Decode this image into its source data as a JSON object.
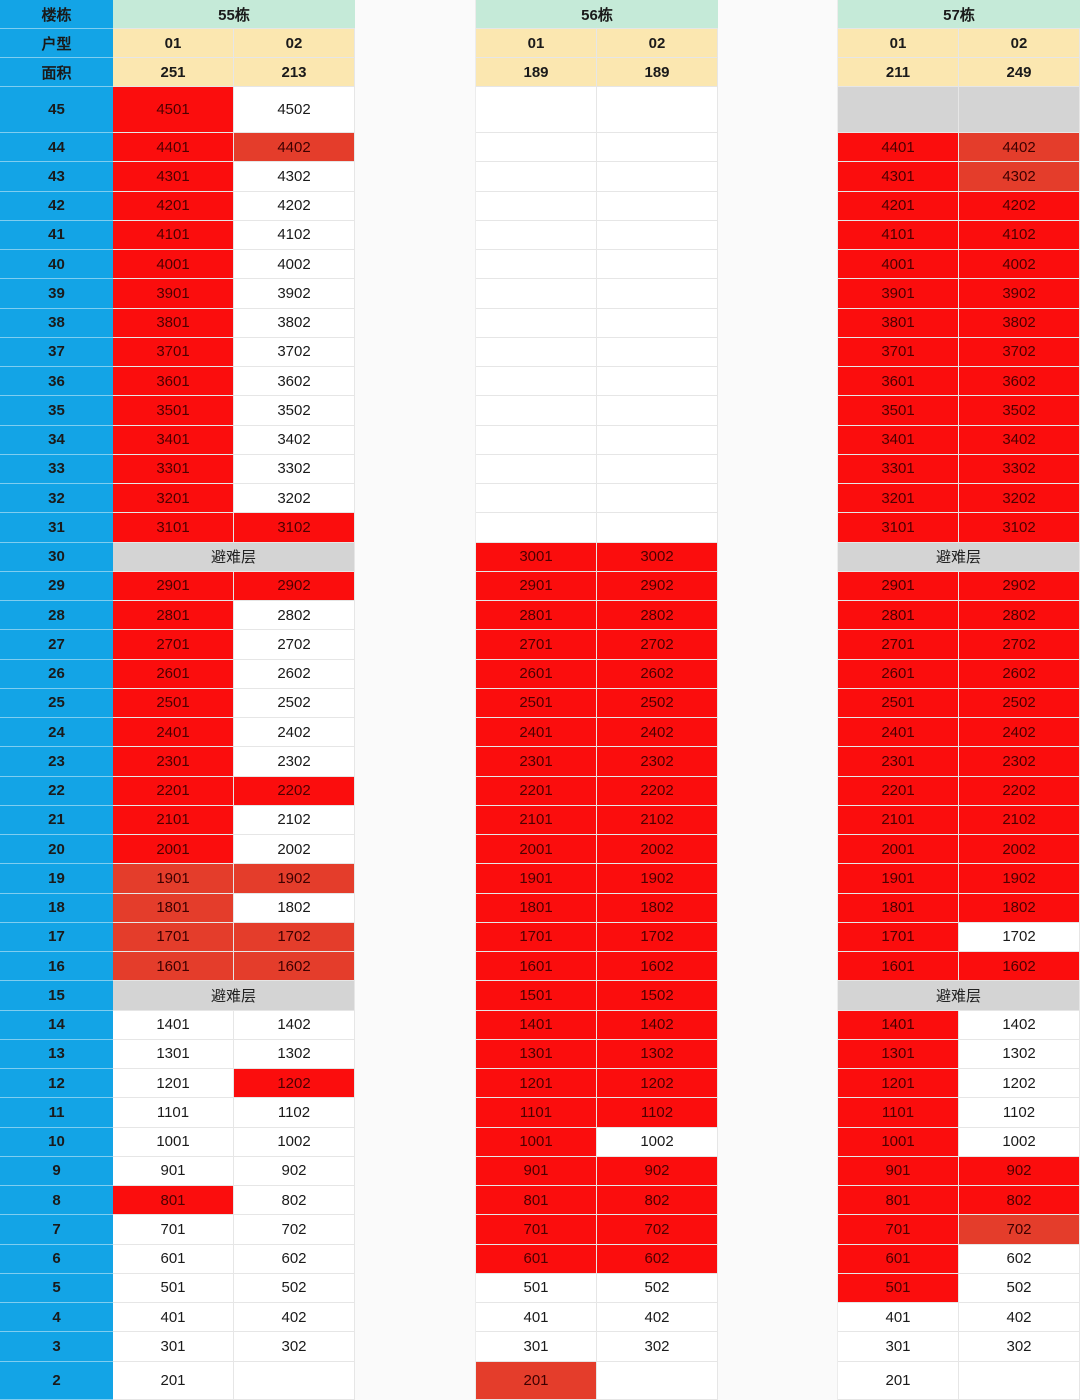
{
  "header": {
    "building_label": "楼栋",
    "unit_type_label": "户型",
    "area_label": "面积",
    "buildings": [
      {
        "name": "55栋",
        "units": [
          "01",
          "02"
        ],
        "areas": [
          "251",
          "213"
        ]
      },
      {
        "name": "56栋",
        "units": [
          "01",
          "02"
        ],
        "areas": [
          "189",
          "189"
        ]
      },
      {
        "name": "57栋",
        "units": [
          "01",
          "02"
        ],
        "areas": [
          "211",
          "249"
        ]
      }
    ]
  },
  "refuge_label": "避难层",
  "status_legend": {
    "w": {
      "meaning": "available",
      "color": "#ffffff"
    },
    "r": {
      "meaning": "sold",
      "color": "#fb0d0d"
    },
    "d": {
      "meaning": "sold-dark",
      "color": "#e43d2b"
    },
    "g": {
      "meaning": "unavailable",
      "color": "#d4d4d4"
    }
  },
  "rows": [
    {
      "floor": "45",
      "b55": [
        [
          "4501",
          "r"
        ],
        [
          "4502",
          "w"
        ]
      ],
      "b56": [
        [
          "",
          "w"
        ],
        [
          "",
          "w"
        ]
      ],
      "b57": [
        [
          "",
          "g"
        ],
        [
          "",
          "g"
        ]
      ]
    },
    {
      "floor": "44",
      "b55": [
        [
          "4401",
          "r"
        ],
        [
          "4402",
          "d"
        ]
      ],
      "b56": [
        [
          "",
          "w"
        ],
        [
          "",
          "w"
        ]
      ],
      "b57": [
        [
          "4401",
          "r"
        ],
        [
          "4402",
          "d"
        ]
      ]
    },
    {
      "floor": "43",
      "b55": [
        [
          "4301",
          "r"
        ],
        [
          "4302",
          "w"
        ]
      ],
      "b56": [
        [
          "",
          "w"
        ],
        [
          "",
          "w"
        ]
      ],
      "b57": [
        [
          "4301",
          "r"
        ],
        [
          "4302",
          "d"
        ]
      ]
    },
    {
      "floor": "42",
      "b55": [
        [
          "4201",
          "r"
        ],
        [
          "4202",
          "w"
        ]
      ],
      "b56": [
        [
          "",
          "w"
        ],
        [
          "",
          "w"
        ]
      ],
      "b57": [
        [
          "4201",
          "r"
        ],
        [
          "4202",
          "r"
        ]
      ]
    },
    {
      "floor": "41",
      "b55": [
        [
          "4101",
          "r"
        ],
        [
          "4102",
          "w"
        ]
      ],
      "b56": [
        [
          "",
          "w"
        ],
        [
          "",
          "w"
        ]
      ],
      "b57": [
        [
          "4101",
          "r"
        ],
        [
          "4102",
          "r"
        ]
      ]
    },
    {
      "floor": "40",
      "b55": [
        [
          "4001",
          "r"
        ],
        [
          "4002",
          "w"
        ]
      ],
      "b56": [
        [
          "",
          "w"
        ],
        [
          "",
          "w"
        ]
      ],
      "b57": [
        [
          "4001",
          "r"
        ],
        [
          "4002",
          "r"
        ]
      ]
    },
    {
      "floor": "39",
      "b55": [
        [
          "3901",
          "r"
        ],
        [
          "3902",
          "w"
        ]
      ],
      "b56": [
        [
          "",
          "w"
        ],
        [
          "",
          "w"
        ]
      ],
      "b57": [
        [
          "3901",
          "r"
        ],
        [
          "3902",
          "r"
        ]
      ]
    },
    {
      "floor": "38",
      "b55": [
        [
          "3801",
          "r"
        ],
        [
          "3802",
          "w"
        ]
      ],
      "b56": [
        [
          "",
          "w"
        ],
        [
          "",
          "w"
        ]
      ],
      "b57": [
        [
          "3801",
          "r"
        ],
        [
          "3802",
          "r"
        ]
      ]
    },
    {
      "floor": "37",
      "b55": [
        [
          "3701",
          "r"
        ],
        [
          "3702",
          "w"
        ]
      ],
      "b56": [
        [
          "",
          "w"
        ],
        [
          "",
          "w"
        ]
      ],
      "b57": [
        [
          "3701",
          "r"
        ],
        [
          "3702",
          "r"
        ]
      ]
    },
    {
      "floor": "36",
      "b55": [
        [
          "3601",
          "r"
        ],
        [
          "3602",
          "w"
        ]
      ],
      "b56": [
        [
          "",
          "w"
        ],
        [
          "",
          "w"
        ]
      ],
      "b57": [
        [
          "3601",
          "r"
        ],
        [
          "3602",
          "r"
        ]
      ]
    },
    {
      "floor": "35",
      "b55": [
        [
          "3501",
          "r"
        ],
        [
          "3502",
          "w"
        ]
      ],
      "b56": [
        [
          "",
          "w"
        ],
        [
          "",
          "w"
        ]
      ],
      "b57": [
        [
          "3501",
          "r"
        ],
        [
          "3502",
          "r"
        ]
      ]
    },
    {
      "floor": "34",
      "b55": [
        [
          "3401",
          "r"
        ],
        [
          "3402",
          "w"
        ]
      ],
      "b56": [
        [
          "",
          "w"
        ],
        [
          "",
          "w"
        ]
      ],
      "b57": [
        [
          "3401",
          "r"
        ],
        [
          "3402",
          "r"
        ]
      ]
    },
    {
      "floor": "33",
      "b55": [
        [
          "3301",
          "r"
        ],
        [
          "3302",
          "w"
        ]
      ],
      "b56": [
        [
          "",
          "w"
        ],
        [
          "",
          "w"
        ]
      ],
      "b57": [
        [
          "3301",
          "r"
        ],
        [
          "3302",
          "r"
        ]
      ]
    },
    {
      "floor": "32",
      "b55": [
        [
          "3201",
          "r"
        ],
        [
          "3202",
          "w"
        ]
      ],
      "b56": [
        [
          "",
          "w"
        ],
        [
          "",
          "w"
        ]
      ],
      "b57": [
        [
          "3201",
          "r"
        ],
        [
          "3202",
          "r"
        ]
      ]
    },
    {
      "floor": "31",
      "b55": [
        [
          "3101",
          "r"
        ],
        [
          "3102",
          "r"
        ]
      ],
      "b56": [
        [
          "",
          "w"
        ],
        [
          "",
          "w"
        ]
      ],
      "b57": [
        [
          "3101",
          "r"
        ],
        [
          "3102",
          "r"
        ]
      ]
    },
    {
      "floor": "30",
      "b55": "refuge",
      "b56": [
        [
          "3001",
          "r"
        ],
        [
          "3002",
          "r"
        ]
      ],
      "b57": "refuge"
    },
    {
      "floor": "29",
      "b55": [
        [
          "2901",
          "r"
        ],
        [
          "2902",
          "r"
        ]
      ],
      "b56": [
        [
          "2901",
          "r"
        ],
        [
          "2902",
          "r"
        ]
      ],
      "b57": [
        [
          "2901",
          "r"
        ],
        [
          "2902",
          "r"
        ]
      ]
    },
    {
      "floor": "28",
      "b55": [
        [
          "2801",
          "r"
        ],
        [
          "2802",
          "w"
        ]
      ],
      "b56": [
        [
          "2801",
          "r"
        ],
        [
          "2802",
          "r"
        ]
      ],
      "b57": [
        [
          "2801",
          "r"
        ],
        [
          "2802",
          "r"
        ]
      ]
    },
    {
      "floor": "27",
      "b55": [
        [
          "2701",
          "r"
        ],
        [
          "2702",
          "w"
        ]
      ],
      "b56": [
        [
          "2701",
          "r"
        ],
        [
          "2702",
          "r"
        ]
      ],
      "b57": [
        [
          "2701",
          "r"
        ],
        [
          "2702",
          "r"
        ]
      ]
    },
    {
      "floor": "26",
      "b55": [
        [
          "2601",
          "r"
        ],
        [
          "2602",
          "w"
        ]
      ],
      "b56": [
        [
          "2601",
          "r"
        ],
        [
          "2602",
          "r"
        ]
      ],
      "b57": [
        [
          "2601",
          "r"
        ],
        [
          "2602",
          "r"
        ]
      ]
    },
    {
      "floor": "25",
      "b55": [
        [
          "2501",
          "r"
        ],
        [
          "2502",
          "w"
        ]
      ],
      "b56": [
        [
          "2501",
          "r"
        ],
        [
          "2502",
          "r"
        ]
      ],
      "b57": [
        [
          "2501",
          "r"
        ],
        [
          "2502",
          "r"
        ]
      ]
    },
    {
      "floor": "24",
      "b55": [
        [
          "2401",
          "r"
        ],
        [
          "2402",
          "w"
        ]
      ],
      "b56": [
        [
          "2401",
          "r"
        ],
        [
          "2402",
          "r"
        ]
      ],
      "b57": [
        [
          "2401",
          "r"
        ],
        [
          "2402",
          "r"
        ]
      ]
    },
    {
      "floor": "23",
      "b55": [
        [
          "2301",
          "r"
        ],
        [
          "2302",
          "w"
        ]
      ],
      "b56": [
        [
          "2301",
          "r"
        ],
        [
          "2302",
          "r"
        ]
      ],
      "b57": [
        [
          "2301",
          "r"
        ],
        [
          "2302",
          "r"
        ]
      ]
    },
    {
      "floor": "22",
      "b55": [
        [
          "2201",
          "r"
        ],
        [
          "2202",
          "r"
        ]
      ],
      "b56": [
        [
          "2201",
          "r"
        ],
        [
          "2202",
          "r"
        ]
      ],
      "b57": [
        [
          "2201",
          "r"
        ],
        [
          "2202",
          "r"
        ]
      ]
    },
    {
      "floor": "21",
      "b55": [
        [
          "2101",
          "r"
        ],
        [
          "2102",
          "w"
        ]
      ],
      "b56": [
        [
          "2101",
          "r"
        ],
        [
          "2102",
          "r"
        ]
      ],
      "b57": [
        [
          "2101",
          "r"
        ],
        [
          "2102",
          "r"
        ]
      ]
    },
    {
      "floor": "20",
      "b55": [
        [
          "2001",
          "r"
        ],
        [
          "2002",
          "w"
        ]
      ],
      "b56": [
        [
          "2001",
          "r"
        ],
        [
          "2002",
          "r"
        ]
      ],
      "b57": [
        [
          "2001",
          "r"
        ],
        [
          "2002",
          "r"
        ]
      ]
    },
    {
      "floor": "19",
      "b55": [
        [
          "1901",
          "d"
        ],
        [
          "1902",
          "d"
        ]
      ],
      "b56": [
        [
          "1901",
          "r"
        ],
        [
          "1902",
          "r"
        ]
      ],
      "b57": [
        [
          "1901",
          "r"
        ],
        [
          "1902",
          "r"
        ]
      ]
    },
    {
      "floor": "18",
      "b55": [
        [
          "1801",
          "d"
        ],
        [
          "1802",
          "w"
        ]
      ],
      "b56": [
        [
          "1801",
          "r"
        ],
        [
          "1802",
          "r"
        ]
      ],
      "b57": [
        [
          "1801",
          "r"
        ],
        [
          "1802",
          "r"
        ]
      ]
    },
    {
      "floor": "17",
      "b55": [
        [
          "1701",
          "d"
        ],
        [
          "1702",
          "d"
        ]
      ],
      "b56": [
        [
          "1701",
          "r"
        ],
        [
          "1702",
          "r"
        ]
      ],
      "b57": [
        [
          "1701",
          "r"
        ],
        [
          "1702",
          "w"
        ]
      ]
    },
    {
      "floor": "16",
      "b55": [
        [
          "1601",
          "d"
        ],
        [
          "1602",
          "d"
        ]
      ],
      "b56": [
        [
          "1601",
          "r"
        ],
        [
          "1602",
          "r"
        ]
      ],
      "b57": [
        [
          "1601",
          "r"
        ],
        [
          "1602",
          "r"
        ]
      ]
    },
    {
      "floor": "15",
      "b55": "refuge",
      "b56": [
        [
          "1501",
          "r"
        ],
        [
          "1502",
          "r"
        ]
      ],
      "b57": "refuge"
    },
    {
      "floor": "14",
      "b55": [
        [
          "1401",
          "w"
        ],
        [
          "1402",
          "w"
        ]
      ],
      "b56": [
        [
          "1401",
          "r"
        ],
        [
          "1402",
          "r"
        ]
      ],
      "b57": [
        [
          "1401",
          "r"
        ],
        [
          "1402",
          "w"
        ]
      ]
    },
    {
      "floor": "13",
      "b55": [
        [
          "1301",
          "w"
        ],
        [
          "1302",
          "w"
        ]
      ],
      "b56": [
        [
          "1301",
          "r"
        ],
        [
          "1302",
          "r"
        ]
      ],
      "b57": [
        [
          "1301",
          "r"
        ],
        [
          "1302",
          "w"
        ]
      ]
    },
    {
      "floor": "12",
      "b55": [
        [
          "1201",
          "w"
        ],
        [
          "1202",
          "r"
        ]
      ],
      "b56": [
        [
          "1201",
          "r"
        ],
        [
          "1202",
          "r"
        ]
      ],
      "b57": [
        [
          "1201",
          "r"
        ],
        [
          "1202",
          "w"
        ]
      ]
    },
    {
      "floor": "11",
      "b55": [
        [
          "1101",
          "w"
        ],
        [
          "1102",
          "w"
        ]
      ],
      "b56": [
        [
          "1101",
          "r"
        ],
        [
          "1102",
          "r"
        ]
      ],
      "b57": [
        [
          "1101",
          "r"
        ],
        [
          "1102",
          "w"
        ]
      ]
    },
    {
      "floor": "10",
      "b55": [
        [
          "1001",
          "w"
        ],
        [
          "1002",
          "w"
        ]
      ],
      "b56": [
        [
          "1001",
          "r"
        ],
        [
          "1002",
          "w"
        ]
      ],
      "b57": [
        [
          "1001",
          "r"
        ],
        [
          "1002",
          "w"
        ]
      ]
    },
    {
      "floor": "9",
      "b55": [
        [
          "901",
          "w"
        ],
        [
          "902",
          "w"
        ]
      ],
      "b56": [
        [
          "901",
          "r"
        ],
        [
          "902",
          "r"
        ]
      ],
      "b57": [
        [
          "901",
          "r"
        ],
        [
          "902",
          "r"
        ]
      ]
    },
    {
      "floor": "8",
      "b55": [
        [
          "801",
          "r"
        ],
        [
          "802",
          "w"
        ]
      ],
      "b56": [
        [
          "801",
          "r"
        ],
        [
          "802",
          "r"
        ]
      ],
      "b57": [
        [
          "801",
          "r"
        ],
        [
          "802",
          "r"
        ]
      ]
    },
    {
      "floor": "7",
      "b55": [
        [
          "701",
          "w"
        ],
        [
          "702",
          "w"
        ]
      ],
      "b56": [
        [
          "701",
          "r"
        ],
        [
          "702",
          "r"
        ]
      ],
      "b57": [
        [
          "701",
          "r"
        ],
        [
          "702",
          "d"
        ]
      ]
    },
    {
      "floor": "6",
      "b55": [
        [
          "601",
          "w"
        ],
        [
          "602",
          "w"
        ]
      ],
      "b56": [
        [
          "601",
          "r"
        ],
        [
          "602",
          "r"
        ]
      ],
      "b57": [
        [
          "601",
          "r"
        ],
        [
          "602",
          "w"
        ]
      ]
    },
    {
      "floor": "5",
      "b55": [
        [
          "501",
          "w"
        ],
        [
          "502",
          "w"
        ]
      ],
      "b56": [
        [
          "501",
          "w"
        ],
        [
          "502",
          "w"
        ]
      ],
      "b57": [
        [
          "501",
          "r"
        ],
        [
          "502",
          "w"
        ]
      ]
    },
    {
      "floor": "4",
      "b55": [
        [
          "401",
          "w"
        ],
        [
          "402",
          "w"
        ]
      ],
      "b56": [
        [
          "401",
          "w"
        ],
        [
          "402",
          "w"
        ]
      ],
      "b57": [
        [
          "401",
          "w"
        ],
        [
          "402",
          "w"
        ]
      ]
    },
    {
      "floor": "3",
      "b55": [
        [
          "301",
          "w"
        ],
        [
          "302",
          "w"
        ]
      ],
      "b56": [
        [
          "301",
          "w"
        ],
        [
          "302",
          "w"
        ]
      ],
      "b57": [
        [
          "301",
          "w"
        ],
        [
          "302",
          "w"
        ]
      ]
    },
    {
      "floor": "2",
      "b55": [
        [
          "201",
          "w"
        ],
        [
          "",
          "w"
        ]
      ],
      "b56": [
        [
          "201",
          "d"
        ],
        [
          "",
          "w"
        ]
      ],
      "b57": [
        [
          "201",
          "w"
        ],
        [
          "",
          "w"
        ]
      ]
    }
  ]
}
